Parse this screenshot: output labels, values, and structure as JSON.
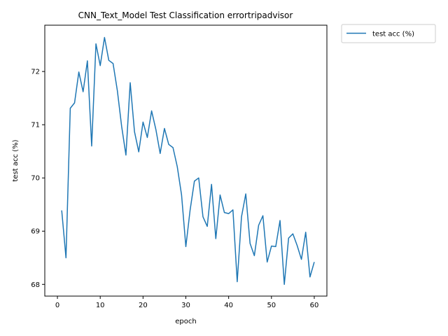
{
  "chart_data": {
    "type": "line",
    "title": "CNN_Text_Model Test Classification errortripadvisor",
    "xlabel": "epoch",
    "ylabel": "test acc (%)",
    "xlim": [
      -2.95,
      62.95
    ],
    "ylim": [
      67.78,
      72.87
    ],
    "xticks": [
      0,
      10,
      20,
      30,
      40,
      50,
      60
    ],
    "yticks": [
      68,
      69,
      70,
      71,
      72
    ],
    "grid": false,
    "legend_position": "outside-top-right",
    "series": [
      {
        "name": "test acc (%)",
        "color": "#1f77b4",
        "x": [
          1,
          2,
          3,
          4,
          5,
          6,
          7,
          8,
          9,
          10,
          11,
          12,
          13,
          14,
          15,
          16,
          17,
          18,
          19,
          20,
          21,
          22,
          23,
          24,
          25,
          26,
          27,
          28,
          29,
          30,
          31,
          32,
          33,
          34,
          35,
          36,
          37,
          38,
          39,
          40,
          41,
          42,
          43,
          44,
          45,
          46,
          47,
          48,
          49,
          50,
          51,
          52,
          53,
          54,
          55,
          56,
          57,
          58,
          59,
          60
        ],
        "y": [
          69.39,
          68.5,
          71.31,
          71.41,
          71.99,
          71.62,
          72.2,
          70.6,
          72.52,
          72.11,
          72.64,
          72.21,
          72.15,
          71.64,
          70.97,
          70.43,
          71.79,
          70.87,
          70.49,
          71.05,
          70.76,
          71.26,
          70.91,
          70.46,
          70.93,
          70.63,
          70.57,
          70.21,
          69.68,
          68.71,
          69.4,
          69.94,
          70.0,
          69.27,
          69.09,
          69.88,
          68.86,
          69.68,
          69.35,
          69.33,
          69.4,
          68.05,
          69.27,
          69.7,
          68.77,
          68.54,
          69.11,
          69.29,
          68.42,
          68.72,
          68.71,
          69.2,
          68.0,
          68.87,
          68.95,
          68.73,
          68.47,
          68.98,
          68.14,
          68.42
        ]
      }
    ]
  }
}
